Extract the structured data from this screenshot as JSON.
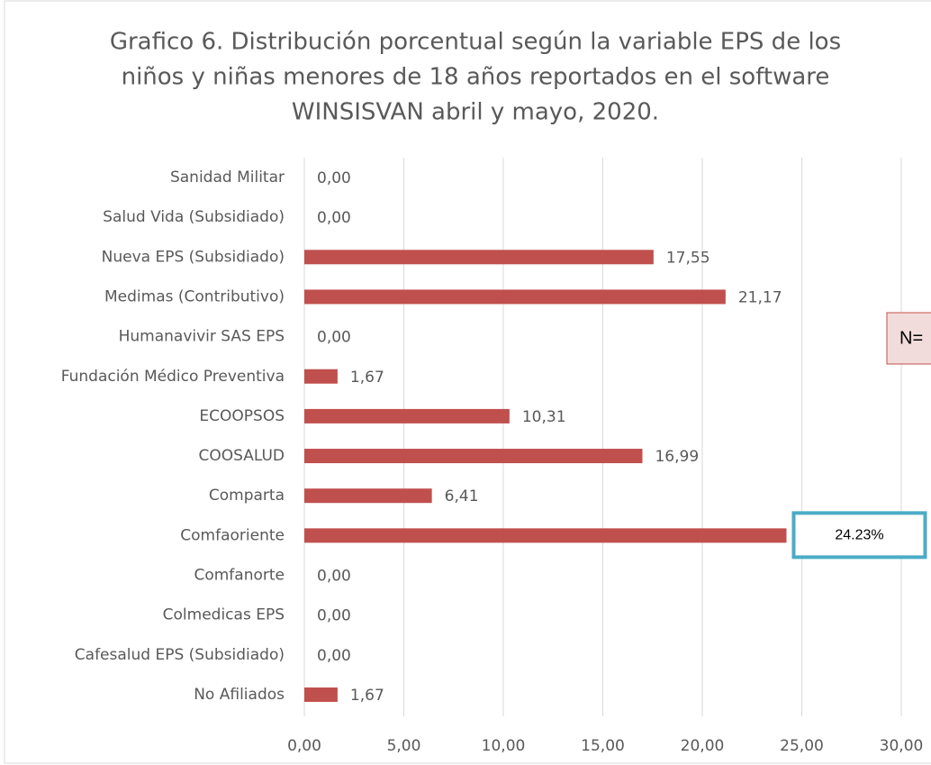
{
  "chart_data": {
    "type": "barh",
    "title": [
      "Grafico 6. Distribución porcentual según la variable EPS de los",
      "niños y niñas menores de 18 años reportados en el software",
      "WINSISVAN abril y mayo, 2020."
    ],
    "categories": [
      "Sanidad Militar",
      "Salud Vida (Subsidiado)",
      "Nueva EPS (Subsidiado)",
      "Medimas (Contributivo)",
      "Humanavivir SAS EPS",
      "Fundación Médico Preventiva",
      "ECOOPSOS",
      "COOSALUD",
      "Comparta",
      "Comfaoriente",
      "Comfanorte",
      "Colmedicas EPS",
      "Cafesalud EPS (Subsidiado)",
      "No Afiliados"
    ],
    "values": [
      0,
      0,
      17.55,
      21.17,
      0,
      1.67,
      10.31,
      16.99,
      6.41,
      24.23,
      0,
      0,
      0,
      1.67
    ],
    "value_labels": [
      "0,00",
      "0,00",
      "17,55",
      "21,17",
      "0,00",
      "1,67",
      "10,31",
      "16,99",
      "6,41",
      "24.23%",
      "0,00",
      "0,00",
      "0,00",
      "1,67"
    ],
    "color": "#c0504d",
    "highlight_index": 9,
    "highlight_color": "#4bacc6",
    "annotation": "N=",
    "xlim": [
      0,
      30
    ],
    "xticks": [
      {
        "value": 0,
        "label": "0,00"
      },
      {
        "value": 5,
        "label": "5,00"
      },
      {
        "value": 10,
        "label": "10,00"
      },
      {
        "value": 15,
        "label": "15,00"
      },
      {
        "value": 20,
        "label": "20,00"
      },
      {
        "value": 25,
        "label": "25,00"
      },
      {
        "value": 30,
        "label": "30,00"
      }
    ],
    "grid": true
  }
}
